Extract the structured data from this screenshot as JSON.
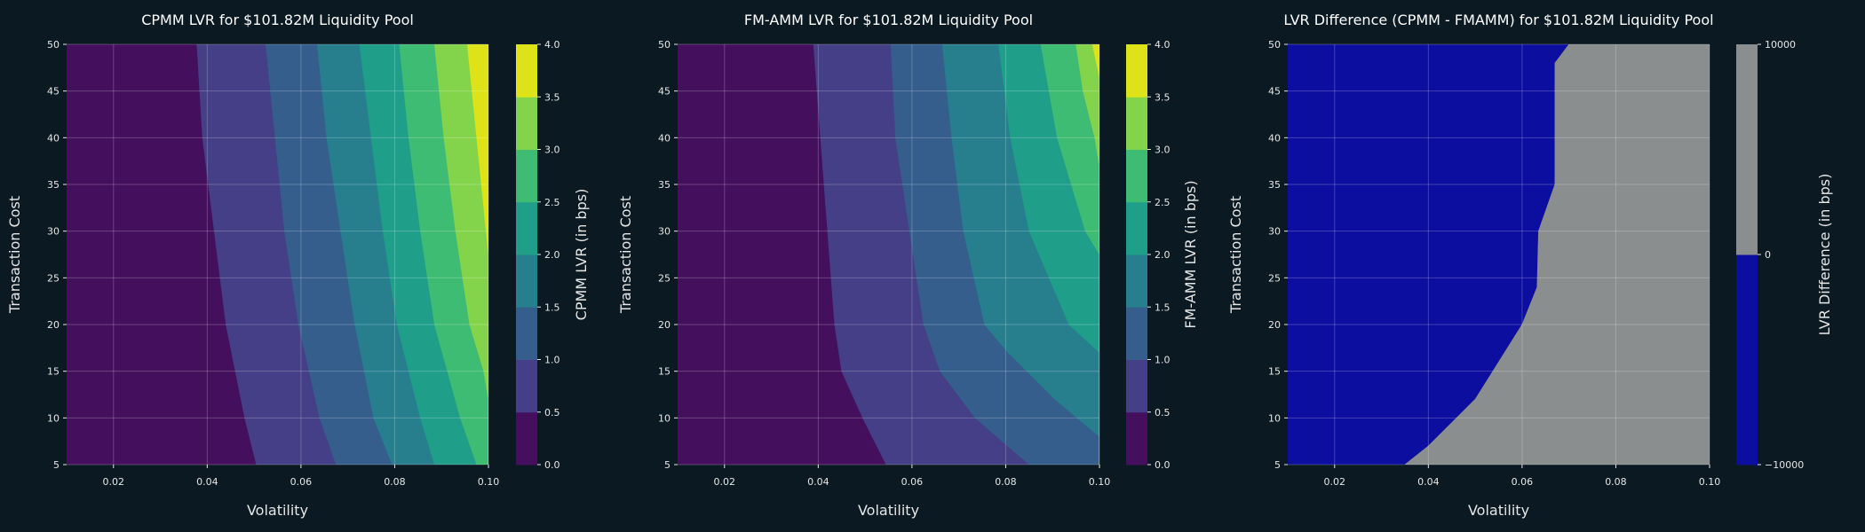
{
  "chart_data": [
    {
      "type": "contour",
      "title": "CPMM LVR for $101.82M Liquidity Pool",
      "xlabel": "Volatility",
      "ylabel": "Transaction Cost",
      "colorbar_label": "CPMM LVR (in bps)",
      "xlim": [
        0.01,
        0.1
      ],
      "ylim": [
        5,
        50
      ],
      "x_ticks": [
        "0.02",
        "0.04",
        "0.06",
        "0.08",
        "0.10"
      ],
      "y_ticks": [
        "5",
        "10",
        "15",
        "20",
        "25",
        "30",
        "35",
        "40",
        "45",
        "50"
      ],
      "grid": true,
      "levels": [
        0.0,
        0.5,
        1.0,
        1.5,
        2.0,
        2.5,
        3.0,
        3.5,
        4.0
      ],
      "colorbar_ticks": [
        "0.0",
        "0.5",
        "1.0",
        "1.5",
        "2.0",
        "2.5",
        "3.0",
        "3.5",
        "4.0"
      ],
      "colors": [
        "#440f5c",
        "#443f87",
        "#355e8d",
        "#277f8e",
        "#1f9e89",
        "#3fbc73",
        "#84d44b",
        "#dde318"
      ],
      "contour_lines": [
        {
          "level": 0.5,
          "points": [
            [
              0.0505,
              5
            ],
            [
              0.048,
              10
            ],
            [
              0.044,
              20
            ],
            [
              0.0415,
              30
            ],
            [
              0.039,
              40
            ],
            [
              0.0378,
              50
            ]
          ]
        },
        {
          "level": 1.0,
          "points": [
            [
              0.0675,
              5
            ],
            [
              0.064,
              10
            ],
            [
              0.0595,
              20
            ],
            [
              0.0565,
              30
            ],
            [
              0.0545,
              40
            ],
            [
              0.0525,
              50
            ]
          ]
        },
        {
          "level": 1.5,
          "points": [
            [
              0.0795,
              5
            ],
            [
              0.0755,
              10
            ],
            [
              0.0715,
              20
            ],
            [
              0.0685,
              30
            ],
            [
              0.0655,
              40
            ],
            [
              0.0635,
              50
            ]
          ]
        },
        {
          "level": 2.0,
          "points": [
            [
              0.0885,
              5
            ],
            [
              0.0855,
              10
            ],
            [
              0.0805,
              20
            ],
            [
              0.0775,
              30
            ],
            [
              0.075,
              40
            ],
            [
              0.0725,
              50
            ]
          ]
        },
        {
          "level": 2.5,
          "points": [
            [
              0.0975,
              5
            ],
            [
              0.094,
              10
            ],
            [
              0.0885,
              20
            ],
            [
              0.0855,
              30
            ],
            [
              0.083,
              40
            ],
            [
              0.081,
              50
            ]
          ]
        },
        {
          "level": 3.0,
          "points": [
            [
              0.1,
              12
            ],
            [
              0.099,
              15
            ],
            [
              0.096,
              20
            ],
            [
              0.093,
              30
            ],
            [
              0.0905,
              40
            ],
            [
              0.0885,
              50
            ]
          ]
        },
        {
          "level": 3.5,
          "points": [
            [
              0.1,
              27.5
            ],
            [
              0.0995,
              30
            ],
            [
              0.0975,
              40
            ],
            [
              0.0955,
              50
            ]
          ]
        }
      ]
    },
    {
      "type": "contour",
      "title": "FM-AMM LVR for $101.82M Liquidity Pool",
      "xlabel": "Volatility",
      "ylabel": "Transaction Cost",
      "colorbar_label": "FM-AMM LVR (in bps)",
      "xlim": [
        0.01,
        0.1
      ],
      "ylim": [
        5,
        50
      ],
      "x_ticks": [
        "0.02",
        "0.04",
        "0.06",
        "0.08",
        "0.10"
      ],
      "y_ticks": [
        "5",
        "10",
        "15",
        "20",
        "25",
        "30",
        "35",
        "40",
        "45",
        "50"
      ],
      "grid": true,
      "levels": [
        0.0,
        0.5,
        1.0,
        1.5,
        2.0,
        2.5,
        3.0,
        3.5,
        4.0
      ],
      "colorbar_ticks": [
        "0.0",
        "0.5",
        "1.0",
        "1.5",
        "2.0",
        "2.5",
        "3.0",
        "3.5",
        "4.0"
      ],
      "colors": [
        "#440f5c",
        "#443f87",
        "#355e8d",
        "#277f8e",
        "#1f9e89",
        "#3fbc73",
        "#84d44b",
        "#dde318"
      ],
      "contour_lines": [
        {
          "level": 0.5,
          "points": [
            [
              0.0545,
              5
            ],
            [
              0.0495,
              10
            ],
            [
              0.045,
              15
            ],
            [
              0.0435,
              20
            ],
            [
              0.042,
              30
            ],
            [
              0.0405,
              40
            ],
            [
              0.039,
              50
            ]
          ]
        },
        {
          "level": 1.0,
          "points": [
            [
              0.085,
              5
            ],
            [
              0.0735,
              10
            ],
            [
              0.066,
              15
            ],
            [
              0.0625,
              20
            ],
            [
              0.0595,
              30
            ],
            [
              0.0565,
              40
            ],
            [
              0.0555,
              50
            ]
          ]
        },
        {
          "level": 1.5,
          "points": [
            [
              0.1,
              5
            ],
            [
              0.1,
              8
            ],
            [
              0.0905,
              12
            ],
            [
              0.0805,
              17
            ],
            [
              0.0755,
              20
            ],
            [
              0.071,
              30
            ],
            [
              0.0685,
              40
            ],
            [
              0.0665,
              50
            ]
          ]
        },
        {
          "level": 2.0,
          "points": [
            [
              0.1,
              17
            ],
            [
              0.0935,
              20
            ],
            [
              0.085,
              30
            ],
            [
              0.081,
              40
            ],
            [
              0.0785,
              50
            ]
          ]
        },
        {
          "level": 2.5,
          "points": [
            [
              0.1,
              27.5
            ],
            [
              0.097,
              30
            ],
            [
              0.091,
              40
            ],
            [
              0.0875,
              50
            ]
          ]
        },
        {
          "level": 3.0,
          "points": [
            [
              0.1,
              37
            ],
            [
              0.099,
              40
            ],
            [
              0.0965,
              45
            ],
            [
              0.095,
              50
            ]
          ]
        },
        {
          "level": 3.5,
          "points": [
            [
              0.1,
              46.5
            ],
            [
              0.0985,
              50
            ]
          ]
        }
      ]
    },
    {
      "type": "contour",
      "title": "LVR Difference (CPMM - FMAMM) for $101.82M Liquidity Pool",
      "xlabel": "Volatility",
      "ylabel": "Transaction Cost",
      "colorbar_label": "LVR Difference (in bps)",
      "xlim": [
        0.01,
        0.1
      ],
      "ylim": [
        5,
        50
      ],
      "x_ticks": [
        "0.02",
        "0.04",
        "0.06",
        "0.08",
        "0.10"
      ],
      "y_ticks": [
        "5",
        "10",
        "15",
        "20",
        "25",
        "30",
        "35",
        "40",
        "45",
        "50"
      ],
      "grid": true,
      "levels": [
        -10000,
        0,
        10000
      ],
      "colorbar_ticks": [
        "−10000",
        "0",
        "10000"
      ],
      "colors": [
        "#0b0e9e",
        "#8a8e8e"
      ],
      "contour_lines": [
        {
          "level": 0,
          "points": [
            [
              0.035,
              5
            ],
            [
              0.04,
              7
            ],
            [
              0.045,
              9.5
            ],
            [
              0.05,
              12
            ],
            [
              0.055,
              16
            ],
            [
              0.06,
              20
            ],
            [
              0.0632,
              24
            ],
            [
              0.0635,
              30
            ],
            [
              0.067,
              35
            ],
            [
              0.067,
              48
            ],
            [
              0.07,
              50
            ]
          ]
        }
      ]
    }
  ]
}
